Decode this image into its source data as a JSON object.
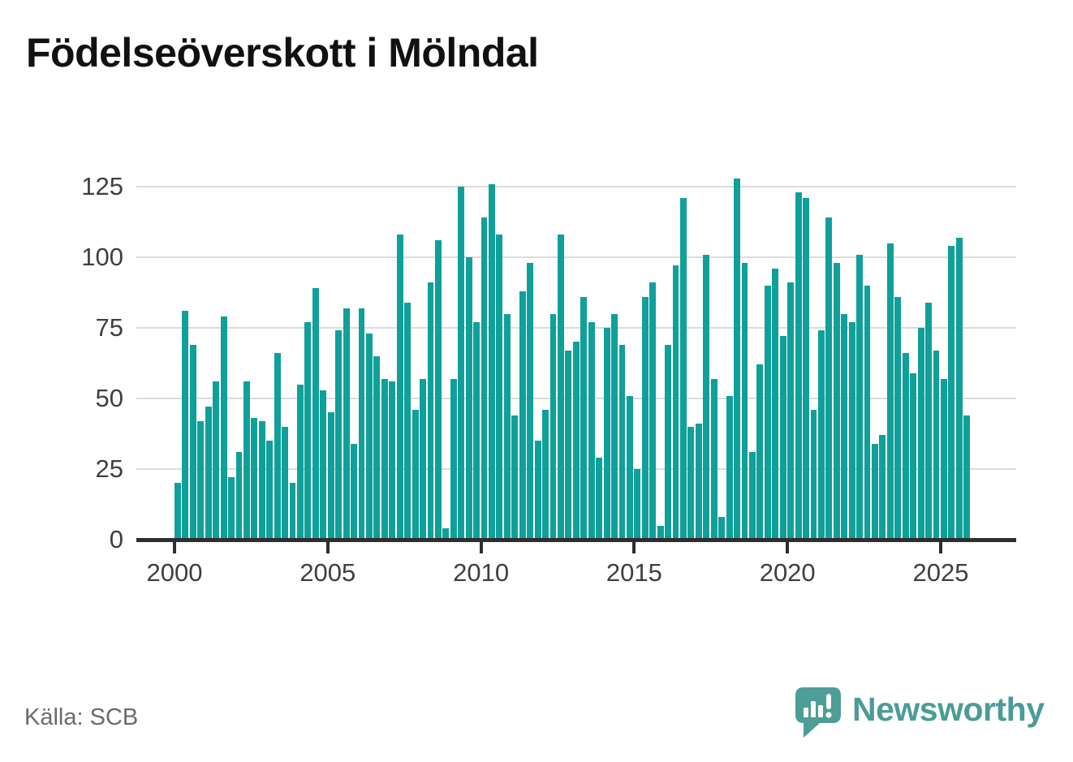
{
  "title": "Födelseöverskott i Mölndal",
  "source": "Källa: SCB",
  "branding": {
    "name": "Newsworthy",
    "icon": "newsworthy-speech-bubble-chart-icon"
  },
  "colors": {
    "bar": "#0fa09a",
    "grid": "#dcdcdc",
    "axis": "#2e2e2e",
    "tick_label": "#3f3f3f",
    "title": "#111111",
    "source": "#6b6b6b",
    "logo": "#4e9d97"
  },
  "chart_data": {
    "type": "bar",
    "title": "Födelseöverskott i Mölndal",
    "period": "quarterly",
    "start": "2000 Q1",
    "end": "2025 Q4",
    "xlabel": "",
    "ylabel": "",
    "ylim": [
      0,
      134
    ],
    "grid": "horizontal",
    "legend": "none",
    "y_ticks": [
      0,
      25,
      50,
      75,
      100,
      125
    ],
    "x_tick_labels": [
      "2000",
      "2005",
      "2010",
      "2015",
      "2020",
      "2025"
    ],
    "values": [
      20,
      81,
      69,
      42,
      47,
      56,
      79,
      22,
      31,
      56,
      43,
      42,
      35,
      66,
      40,
      20,
      55,
      77,
      89,
      53,
      45,
      74,
      82,
      34,
      82,
      73,
      65,
      57,
      56,
      108,
      84,
      46,
      57,
      91,
      106,
      4,
      57,
      125,
      100,
      77,
      114,
      126,
      108,
      80,
      44,
      88,
      98,
      35,
      46,
      80,
      108,
      67,
      70,
      86,
      77,
      29,
      75,
      80,
      69,
      51,
      25,
      86,
      91,
      5,
      69,
      97,
      121,
      40,
      41,
      101,
      57,
      8,
      51,
      128,
      98,
      31,
      62,
      90,
      96,
      72,
      91,
      123,
      121,
      46,
      74,
      114,
      98,
      80,
      77,
      101,
      90,
      34,
      37,
      105,
      86,
      66,
      59,
      75,
      84,
      67,
      57,
      104,
      107,
      44
    ]
  }
}
